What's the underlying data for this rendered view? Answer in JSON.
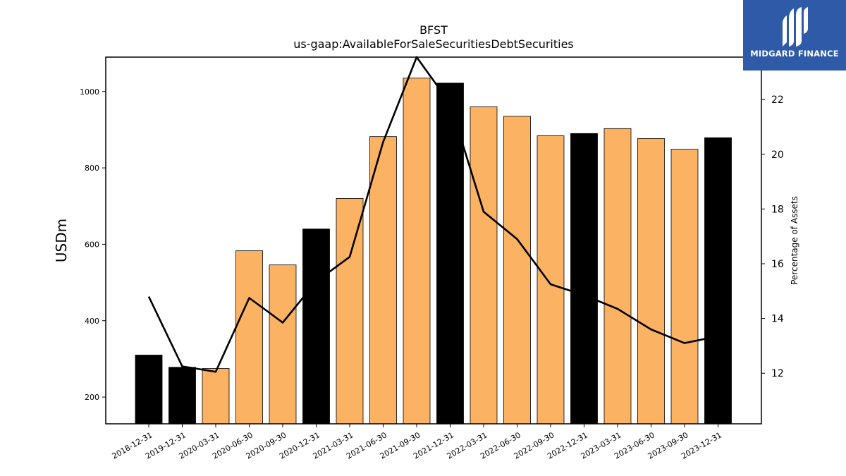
{
  "brand": {
    "name": "MIDGARD FINANCE",
    "color": "#2f5aa8"
  },
  "chart_data": {
    "type": "bar",
    "title": "BFST",
    "subtitle": "us-gaap:AvailableForSaleSecuritiesDebtSecurities",
    "ylabel": "USDm",
    "y2label": "Percentage of Assets",
    "ylim": [
      130,
      1090
    ],
    "y2lim": [
      10.15,
      23.55
    ],
    "yticks": [
      200,
      400,
      600,
      800,
      1000
    ],
    "y2ticks": [
      12,
      14,
      16,
      18,
      20,
      22
    ],
    "categories": [
      "2018-12-31",
      "2019-12-31",
      "2020-03-31",
      "2020-06-30",
      "2020-09-30",
      "2020-12-31",
      "2021-03-31",
      "2021-06-30",
      "2021-09-30",
      "2021-12-31",
      "2022-03-31",
      "2022-06-30",
      "2022-09-30",
      "2022-12-31",
      "2023-03-31",
      "2023-06-30",
      "2023-09-30",
      "2023-12-31"
    ],
    "series": [
      {
        "kind": "bar",
        "axis": "left",
        "values": [
          310,
          278,
          275,
          583,
          546,
          640,
          720,
          882,
          1035,
          1022,
          960,
          935,
          884,
          890,
          903,
          877,
          849,
          879
        ],
        "annual": [
          true,
          true,
          false,
          false,
          false,
          true,
          false,
          false,
          false,
          true,
          false,
          false,
          false,
          true,
          false,
          false,
          false,
          true
        ]
      },
      {
        "kind": "line",
        "axis": "right",
        "values": [
          14.8,
          12.25,
          12.05,
          14.75,
          13.85,
          15.35,
          16.25,
          20.45,
          23.55,
          21.85,
          17.9,
          16.9,
          15.25,
          14.85,
          14.35,
          13.6,
          13.1,
          13.35
        ]
      }
    ],
    "colors": {
      "annual_bar": "#000000",
      "quarter_bar": "#fbb262",
      "line": "#000000"
    },
    "grid": false
  }
}
